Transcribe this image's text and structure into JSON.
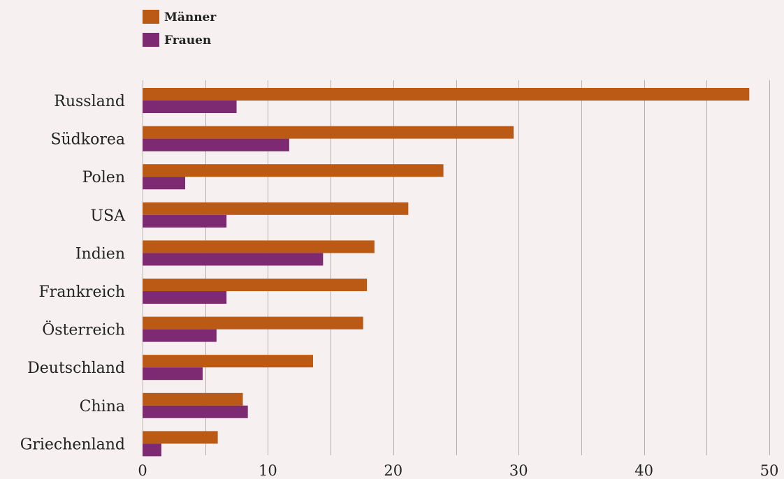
{
  "chart_data": {
    "type": "bar",
    "orientation": "horizontal",
    "categories": [
      "Russland",
      "Südkorea",
      "Polen",
      "USA",
      "Indien",
      "Frankreich",
      "Österreich",
      "Deutschland",
      "China",
      "Griechenland"
    ],
    "series": [
      {
        "name": "Männer",
        "color": "#bb5a14",
        "values": [
          48.4,
          29.6,
          24.0,
          21.2,
          18.5,
          17.9,
          17.6,
          13.6,
          8.0,
          6.0
        ]
      },
      {
        "name": "Frauen",
        "color": "#7d2a72",
        "values": [
          7.5,
          11.7,
          3.4,
          6.7,
          14.4,
          6.7,
          5.9,
          4.8,
          8.4,
          1.5
        ]
      }
    ],
    "xlim": [
      0,
      50
    ],
    "xticks": [
      "0",
      "10",
      "20",
      "30",
      "40",
      "50"
    ],
    "grid": true,
    "legend_position": "top-left"
  },
  "colors": {
    "background": "#f6f1f0",
    "grid": "#b5b0ae"
  }
}
